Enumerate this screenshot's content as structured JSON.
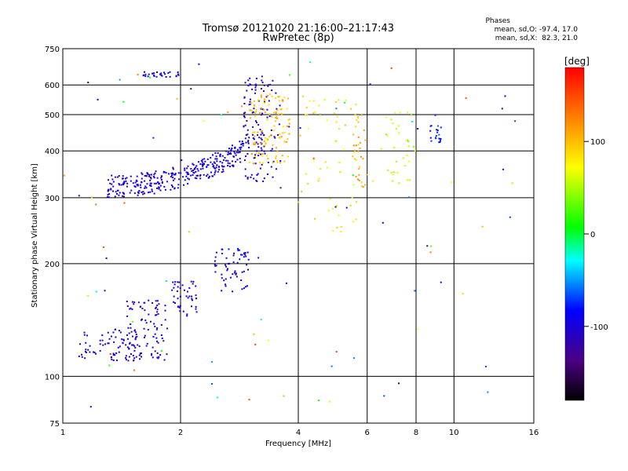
{
  "title_line1": "Tromsø 20121020 21:16:00–21:17:43",
  "title_line2": "RwPretec (8p)",
  "stats": {
    "heading": "Phases",
    "line1": "mean, sd,O: -97.4, 17.0",
    "line2": "mean, sd,X:  82.3, 21.0"
  },
  "chart_data": {
    "type": "scatter",
    "xlabel": "Frequency [MHz]",
    "ylabel": "Stationary phase Virtual Height [km]",
    "x_scale": "log",
    "y_scale": "log",
    "xlim": [
      1,
      16
    ],
    "ylim": [
      75,
      750
    ],
    "x_ticks": [
      1,
      2,
      4,
      6,
      8,
      10,
      16
    ],
    "y_ticks": [
      75,
      100,
      200,
      300,
      400,
      500,
      600,
      750
    ],
    "grid": true,
    "colorbar": {
      "label": "[deg]",
      "ticks": [
        100,
        0,
        -100
      ],
      "range": [
        -180,
        180
      ]
    },
    "clusters": [
      {
        "x0": 1.3,
        "x1": 2.9,
        "y0": 320,
        "y1": 400,
        "kind": "curve",
        "phase": -100,
        "n": 320
      },
      {
        "x0": 2.9,
        "x1": 3.3,
        "y0": 330,
        "y1": 640,
        "kind": "box",
        "phase": -110,
        "n": 110
      },
      {
        "x0": 3.3,
        "x1": 3.6,
        "y0": 340,
        "y1": 620,
        "kind": "box",
        "phase": -105,
        "n": 30
      },
      {
        "x0": 3.0,
        "x1": 3.8,
        "y0": 370,
        "y1": 570,
        "kind": "box",
        "phase": 100,
        "n": 110
      },
      {
        "x0": 1.6,
        "x1": 2.0,
        "y0": 630,
        "y1": 650,
        "kind": "box",
        "phase": -95,
        "n": 30
      },
      {
        "x0": 1.1,
        "x1": 1.6,
        "y0": 110,
        "y1": 135,
        "kind": "box",
        "phase": -100,
        "n": 80
      },
      {
        "x0": 1.45,
        "x1": 1.85,
        "y0": 110,
        "y1": 160,
        "kind": "box",
        "phase": -105,
        "n": 90
      },
      {
        "x0": 1.9,
        "x1": 2.2,
        "y0": 145,
        "y1": 180,
        "kind": "box",
        "phase": -100,
        "n": 45
      },
      {
        "x0": 2.4,
        "x1": 3.0,
        "y0": 165,
        "y1": 220,
        "kind": "box",
        "phase": -95,
        "n": 60
      },
      {
        "x0": 4.0,
        "x1": 5.7,
        "y0": 240,
        "y1": 560,
        "kind": "box",
        "phase": 80,
        "n": 60
      },
      {
        "x0": 5.5,
        "x1": 6.0,
        "y0": 320,
        "y1": 500,
        "kind": "box",
        "phase": 110,
        "n": 30
      },
      {
        "x0": 6.5,
        "x1": 8.0,
        "y0": 320,
        "y1": 520,
        "kind": "box",
        "phase": 60,
        "n": 35
      },
      {
        "x0": 8.7,
        "x1": 9.3,
        "y0": 420,
        "y1": 470,
        "kind": "box",
        "phase": -80,
        "n": 20
      },
      {
        "x0": 1.0,
        "x1": 16.0,
        "y0": 80,
        "y1": 700,
        "kind": "scatter",
        "phase": 0,
        "n": 90
      }
    ]
  }
}
